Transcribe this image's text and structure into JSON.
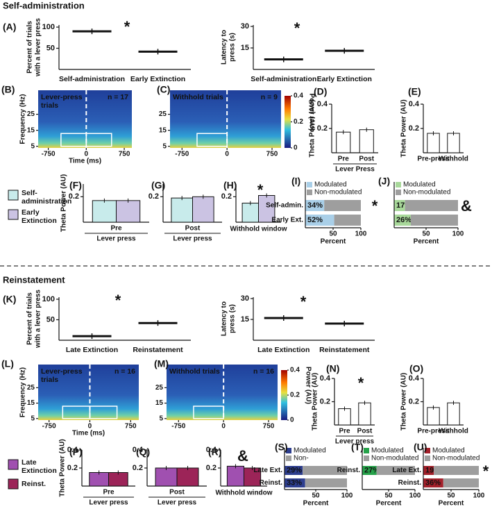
{
  "sections": [
    "Self-administration",
    "Reinstatement"
  ],
  "legends": [
    {
      "items": [
        {
          "name": [
            "Self-",
            "administration"
          ],
          "color": "#c8ebeb"
        },
        {
          "name": [
            "Early",
            "Extinction"
          ],
          "color": "#cbc3e3"
        }
      ]
    },
    {
      "items": [
        {
          "name": [
            "Late",
            "Extinction"
          ],
          "color": "#a050b0"
        },
        {
          "name": [
            "Reinst."
          ],
          "color": "#9c2458"
        }
      ]
    }
  ],
  "chart_data": [
    {
      "type": "dot",
      "panel": "(A)",
      "ylabel": [
        "Percent of trials",
        "with a lever press"
      ],
      "categories": [
        "Self-administration",
        "Early Extinction"
      ],
      "values": [
        90,
        42
      ],
      "ylim": [
        0,
        105
      ],
      "yticks": [
        50,
        100
      ],
      "annotation": "*"
    },
    {
      "type": "dot",
      "ylabel": [
        "Latency to",
        "press (s)"
      ],
      "categories": [
        "Self-administration",
        "Early Extinction"
      ],
      "values": [
        7,
        13
      ],
      "ylim": [
        0,
        31
      ],
      "yticks": [
        15,
        30
      ],
      "annotation": "*"
    },
    {
      "type": "heatmap",
      "panel": "(B)",
      "label": [
        "Lever-press",
        "trials"
      ],
      "n": "n = 17",
      "ylabel": [
        "Frequency (Hz)"
      ],
      "xlabel": "Time (ms)",
      "xlim": [
        -950,
        900
      ],
      "xticks": [
        -750,
        0,
        750
      ],
      "ylim": [
        4,
        40
      ],
      "yticks": [
        5,
        15,
        25
      ]
    },
    {
      "type": "heatmap",
      "panel": "(C)",
      "label": [
        "Withhold trials"
      ],
      "n": "n = 9",
      "xlim": [
        -950,
        900
      ],
      "xticks": [
        -750,
        0,
        750
      ],
      "ylim": [
        4,
        40
      ],
      "yticks": [
        5,
        15,
        25
      ],
      "cblabel": "Power (AU)",
      "cblim": [
        0,
        0.4
      ],
      "cbticks": [
        0,
        0.2,
        0.4
      ]
    },
    {
      "type": "bar",
      "panel": "(D)",
      "ylabel": [
        "Theta Power (AU)"
      ],
      "categories": [
        "Pre",
        "Post"
      ],
      "xlabel": "Lever Press",
      "values": [
        0.17,
        0.19
      ],
      "color": "#ffffff",
      "ylim": [
        0,
        0.4
      ],
      "yticks": [
        0.2,
        0.4
      ]
    },
    {
      "type": "bar",
      "panel": "(E)",
      "ylabel": [
        "Theta Power (AU)"
      ],
      "categories": [
        "Pre-press",
        "Withhold"
      ],
      "values": [
        0.16,
        0.16
      ],
      "color": "#ffffff",
      "ylim": [
        0,
        0.4
      ],
      "yticks": [
        0.2,
        0.4
      ]
    },
    {
      "type": "bar",
      "panel": "(F)",
      "ylabel": [
        "Theta Power (AU)"
      ],
      "categories": [
        "Pre"
      ],
      "xlabel": "Lever press",
      "series": [
        {
          "color": "#c8ebeb",
          "values": [
            0.17
          ]
        },
        {
          "color": "#cbc3e3",
          "values": [
            0.17
          ]
        }
      ],
      "ylim": [
        0,
        0.3
      ],
      "yticks": [
        0.2
      ]
    },
    {
      "type": "bar",
      "panel": "(G)",
      "categories": [
        "Post"
      ],
      "xlabel": "Lever press",
      "series": [
        {
          "color": "#c8ebeb",
          "values": [
            0.19
          ]
        },
        {
          "color": "#cbc3e3",
          "values": [
            0.2
          ]
        }
      ],
      "ylim": [
        0,
        0.3
      ],
      "yticks": [
        0.2
      ]
    },
    {
      "type": "bar",
      "panel": "(H)",
      "categories": [
        null
      ],
      "xlabel": "Withhold window",
      "series": [
        {
          "color": "#c8ebeb",
          "values": [
            0.15
          ]
        },
        {
          "color": "#cbc3e3",
          "values": [
            0.21
          ]
        }
      ],
      "ylim": [
        0,
        0.3
      ],
      "yticks": [
        0.2
      ],
      "annotation": "*"
    },
    {
      "type": "hbar_stacked",
      "panel": "(I)",
      "categories": [
        "Self-admin.",
        "Early Ext."
      ],
      "xlabel": "Percent",
      "xlim": [
        0,
        100
      ],
      "xticks": [
        50,
        100
      ],
      "series": [
        {
          "name": "Modulated",
          "color": "#a9cfe8",
          "values": [
            34,
            52
          ],
          "value_labels": [
            "34%",
            "52%"
          ]
        },
        {
          "name": "Non-modulated",
          "color": "#9e9e9e",
          "values": [
            66,
            48
          ]
        }
      ],
      "annotation": "*"
    },
    {
      "type": "hbar_stacked",
      "panel": "(J)",
      "categories": [
        null,
        null
      ],
      "xlabel": "Percent",
      "xlim": [
        0,
        100
      ],
      "xticks": [
        50,
        100
      ],
      "series": [
        {
          "name": "Modulated",
          "color": "#a8d89a",
          "values": [
            17,
            26
          ],
          "value_labels": [
            "17%",
            "26%"
          ]
        },
        {
          "name": "Non-modulated",
          "color": "#9e9e9e",
          "values": [
            83,
            74
          ]
        }
      ],
      "annotation": "&"
    },
    {
      "type": "dot",
      "panel": "(K)",
      "ylabel": [
        "Percent of trials",
        "with a lever press"
      ],
      "categories": [
        "Late Extinction",
        "Reinstatement"
      ],
      "values": [
        10,
        42
      ],
      "ylim": [
        0,
        105
      ],
      "yticks": [
        50,
        100
      ],
      "annotation": "*"
    },
    {
      "type": "dot",
      "ylabel": [
        "Latency to",
        "press (s)"
      ],
      "categories": [
        "Late Extinction",
        "Reinstatement"
      ],
      "values": [
        16,
        12
      ],
      "ylim": [
        0,
        31
      ],
      "yticks": [
        15,
        30
      ],
      "annotation": "*"
    },
    {
      "type": "heatmap",
      "panel": "(L)",
      "label": [
        "Lever-press",
        "trials"
      ],
      "n": "n = 16",
      "ylabel": [
        "Frequency (Hz)"
      ],
      "xlabel": "Time (ms)",
      "xlim": [
        -950,
        900
      ],
      "xticks": [
        -750,
        0,
        750
      ],
      "ylim": [
        4,
        40
      ],
      "yticks": [
        5,
        15,
        25
      ]
    },
    {
      "type": "heatmap",
      "panel": "(M)",
      "label": [
        "Withhold trials"
      ],
      "n": "n = 16",
      "xlim": [
        -950,
        900
      ],
      "xticks": [
        -750,
        0,
        750
      ],
      "ylim": [
        4,
        40
      ],
      "yticks": [
        5,
        15,
        25
      ],
      "cblabel": "Power (AU)",
      "cblim": [
        0,
        0.4
      ],
      "cbticks": [
        0,
        0.2,
        0.4
      ]
    },
    {
      "type": "bar",
      "panel": "(N)",
      "ylabel": [
        "Theta Power (AU)"
      ],
      "categories": [
        "Pre",
        "Post"
      ],
      "xlabel": "Lever press",
      "values": [
        0.14,
        0.19
      ],
      "color": "#ffffff",
      "ylim": [
        0,
        0.4
      ],
      "yticks": [
        0.2,
        0.4
      ],
      "annotation": "*"
    },
    {
      "type": "bar",
      "panel": "(O)",
      "ylabel": [
        "Theta Power (AU)"
      ],
      "categories": [
        "Pre-press",
        "Withhold"
      ],
      "values": [
        0.15,
        0.19
      ],
      "color": "#ffffff",
      "ylim": [
        0,
        0.4
      ],
      "yticks": [
        0.2,
        0.4
      ]
    },
    {
      "type": "bar",
      "panel": "(P)",
      "ylabel": [
        "Theta Power (AU)"
      ],
      "categories": [
        "Pre"
      ],
      "xlabel": "Lever press",
      "series": [
        {
          "color": "#a050b0",
          "values": [
            0.15
          ]
        },
        {
          "color": "#9c2458",
          "values": [
            0.15
          ]
        }
      ],
      "ylim": [
        0,
        0.4
      ],
      "yticks": [
        0.2,
        0.4
      ]
    },
    {
      "type": "bar",
      "panel": "(Q)",
      "categories": [
        "Post"
      ],
      "xlabel": "Lever press",
      "series": [
        {
          "color": "#a050b0",
          "values": [
            0.2
          ]
        },
        {
          "color": "#9c2458",
          "values": [
            0.2
          ]
        }
      ],
      "ylim": [
        0,
        0.4
      ],
      "yticks": [
        0.2,
        0.4
      ]
    },
    {
      "type": "bar",
      "panel": "(R)",
      "categories": [
        null
      ],
      "xlabel": "Withhold window",
      "series": [
        {
          "color": "#a050b0",
          "values": [
            0.22
          ]
        },
        {
          "color": "#9c2458",
          "values": [
            0.2
          ]
        }
      ],
      "ylim": [
        0,
        0.4
      ],
      "yticks": [
        0.2,
        0.4
      ],
      "annotation": "&"
    },
    {
      "type": "hbar_stacked",
      "panel": "(S)",
      "categories": [
        "Late Ext.",
        "Reinst."
      ],
      "xlabel": "Percent",
      "xlim": [
        0,
        100
      ],
      "xticks": [
        50,
        100
      ],
      "series": [
        {
          "name": "Modulated",
          "color": "#2d3e8f",
          "values": [
            29,
            33
          ],
          "value_labels": [
            "29%",
            "33%"
          ]
        },
        {
          "name": "Non-",
          "color": "#9e9e9e",
          "values": [
            71,
            67
          ]
        }
      ]
    },
    {
      "type": "hbar_stacked",
      "panel": "(T)",
      "categories": [
        "Reinst."
      ],
      "xlabel": "Percent",
      "xlim": [
        0,
        100
      ],
      "xticks": [
        50,
        100
      ],
      "series": [
        {
          "name": "Modulated",
          "color": "#26a24a",
          "values": [
            27
          ],
          "value_labels": [
            "27%"
          ]
        },
        {
          "name": "Non-modulated",
          "color": "#9e9e9e",
          "values": [
            73
          ]
        }
      ]
    },
    {
      "type": "hbar_stacked",
      "panel": "(U)",
      "categories": [
        "Late Ext.",
        "Reinst."
      ],
      "xlabel": "Percent",
      "xlim": [
        0,
        100
      ],
      "xticks": [
        50,
        100
      ],
      "series": [
        {
          "name": "Modulated",
          "color": "#a3202a",
          "values": [
            19,
            36
          ],
          "value_labels": [
            "19%",
            "36%"
          ]
        },
        {
          "name": "Non-modulated",
          "color": "#9e9e9e",
          "values": [
            81,
            64
          ]
        }
      ],
      "annotation": "*"
    }
  ]
}
